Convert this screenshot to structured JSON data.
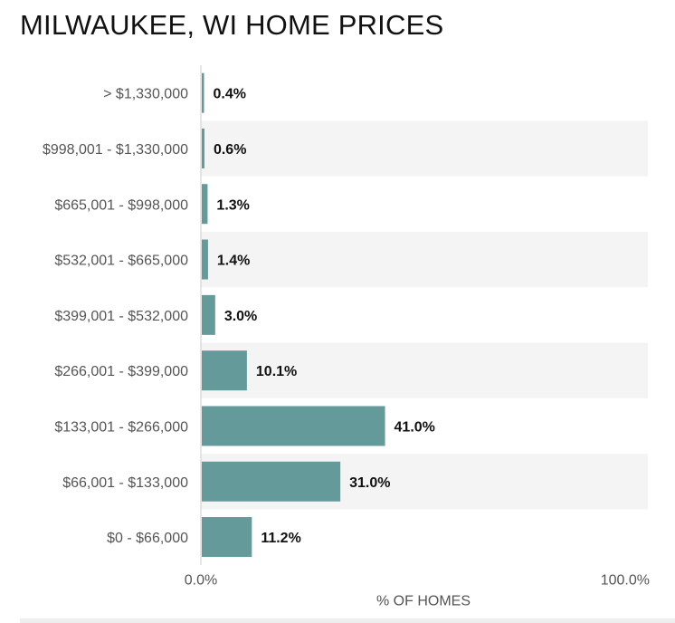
{
  "title": "MILWAUKEE, WI HOME PRICES",
  "colors": {
    "bar": "#659a9a",
    "row_alt": "#f4f4f4",
    "axis": "#cccccc",
    "label": "#555555",
    "value": "#111111"
  },
  "chart_data": {
    "type": "bar",
    "orientation": "horizontal",
    "categories": [
      "> $1,330,000",
      "$998,001 - $1,330,000",
      "$665,001 - $998,000",
      "$532,001 - $665,000",
      "$399,001 - $532,000",
      "$266,001 - $399,000",
      "$133,001 - $266,000",
      "$66,001 - $133,000",
      "$0 - $66,000"
    ],
    "values": [
      0.4,
      0.6,
      1.3,
      1.4,
      3.0,
      10.1,
      41.0,
      31.0,
      11.2
    ],
    "value_labels": [
      "0.4%",
      "0.6%",
      "1.3%",
      "1.4%",
      "3.0%",
      "10.1%",
      "41.0%",
      "31.0%",
      "11.2%"
    ],
    "xlim": [
      0,
      100
    ],
    "xticks": [
      "0.0%",
      "100.0%"
    ],
    "xlabel": "% OF HOMES",
    "ylabel": "",
    "grid": false,
    "alternating_row_shading": true
  }
}
